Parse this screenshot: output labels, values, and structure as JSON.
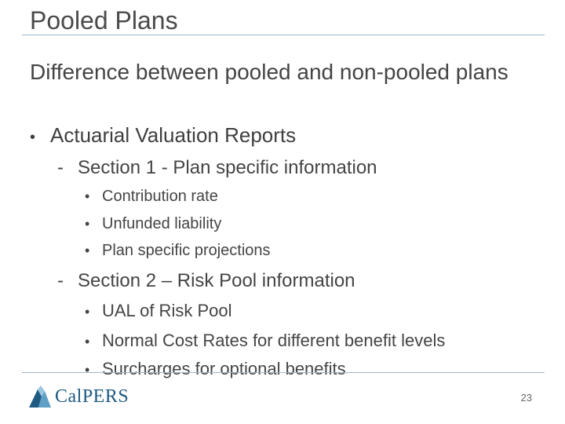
{
  "slide": {
    "title": "Pooled Plans",
    "subtitle": "Difference between pooled and non-pooled plans",
    "bullets": {
      "b1": "Actuarial Valuation Reports",
      "s1": "Section 1 - Plan specific information",
      "s1_items": [
        "Contribution rate",
        "Unfunded liability",
        "Plan specific projections"
      ],
      "s2": "Section 2 – Risk Pool information",
      "s2_items": [
        "UAL of Risk Pool",
        "Normal Cost Rates for different benefit levels",
        "Surcharges for optional benefits"
      ]
    },
    "markers": {
      "bullet": "•",
      "dash": "-"
    },
    "logo_text": "CalPERS",
    "page_number": "23"
  },
  "colors": {
    "rule": "#9fb8c8",
    "logo": "#1e5a82",
    "text": "#444444"
  }
}
